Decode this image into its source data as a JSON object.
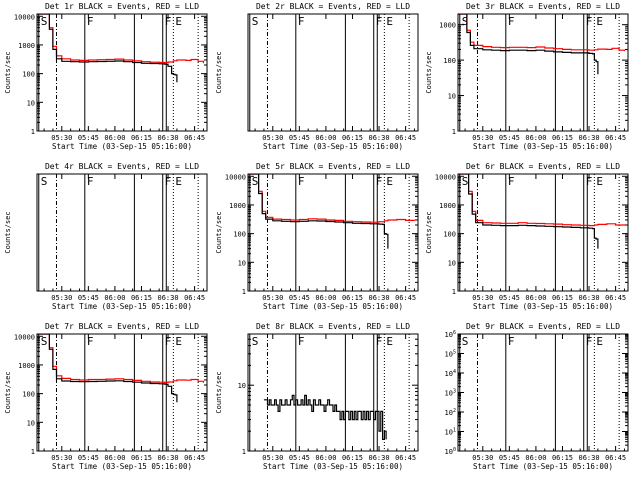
{
  "chart_data": {
    "type": "line",
    "xlabel": "Start Time (03-Sep-15 05:16:00)",
    "ylabel": "Counts/sec",
    "x_tick_labels": [
      "05:30",
      "05:45",
      "06:00",
      "06:15",
      "06:30",
      "06:45"
    ],
    "x_tick_values": [
      30,
      45,
      60,
      75,
      90,
      105
    ],
    "xlim": [
      16,
      112
    ],
    "log_y": true,
    "colors": {
      "events": "#000000",
      "lld": "#ff0000"
    },
    "markers": [
      {
        "label": "S",
        "x": 17,
        "style": "solid"
      },
      {
        "label": "",
        "x": 27,
        "style": "dashdot"
      },
      {
        "label": "F",
        "x": 43,
        "style": "solid"
      },
      {
        "label": "",
        "x": 71,
        "style": "solid"
      },
      {
        "label": "F",
        "x": 87,
        "style": "solid"
      },
      {
        "label": "",
        "x": 89,
        "style": "solid"
      },
      {
        "label": "E",
        "x": 93,
        "style": "dotted"
      },
      {
        "label": "",
        "x": 107,
        "style": "dotted"
      }
    ],
    "panels": [
      {
        "title": "Det 1r BLACK = Events, RED = LLD",
        "ylabel": "Counts/sec",
        "y_ticks": [
          1,
          10,
          100,
          1000,
          10000
        ],
        "y_tick_labels": [
          "1",
          "10",
          "100",
          "1000",
          "10000"
        ],
        "ylim": [
          1,
          12000
        ],
        "xlabel": "Start Time (03-Sep-15 05:16:00)",
        "x_tick_labels": [
          "05:30",
          "05:45",
          "06:00",
          "06:15",
          "06:30",
          "06:45"
        ],
        "series": [
          {
            "color": "#ff0000",
            "x": [
              16,
              20,
              23,
              25,
              27,
              30,
              35,
              40,
              45,
              50,
              55,
              60,
              65,
              70,
              75,
              80,
              85,
              88,
              90,
              93,
              95,
              100,
              103,
              107,
              110
            ],
            "y": [
              12000,
              12000,
              4000,
              900,
              420,
              330,
              300,
              290,
              300,
              305,
              310,
              320,
              300,
              280,
              260,
              250,
              245,
              240,
              255,
              280,
              300,
              290,
              310,
              270,
              230
            ]
          },
          {
            "color": "#000000",
            "x": [
              16,
              20,
              23,
              25,
              27,
              30,
              35,
              40,
              45,
              50,
              55,
              60,
              65,
              70,
              75,
              80,
              85,
              88,
              89,
              90,
              92,
              93,
              94,
              95
            ],
            "y": [
              12000,
              12000,
              3500,
              700,
              330,
              270,
              260,
              255,
              260,
              265,
              270,
              275,
              260,
              245,
              230,
              225,
              220,
              215,
              210,
              180,
              100,
              95,
              90,
              50
            ]
          }
        ]
      },
      {
        "title": "Det 2r BLACK = Events, RED = LLD",
        "ylabel": "Counts/sec",
        "y_ticks": [],
        "y_tick_labels": [],
        "ylim": [
          1,
          10
        ],
        "xlabel": "Start Time (03-Sep-15 05:16:00)",
        "x_tick_labels": [
          "05:30",
          "05:45",
          "06:00",
          "06:15",
          "06:30",
          "06:45"
        ],
        "series": []
      },
      {
        "title": "Det 3r BLACK = Events, RED = LLD",
        "ylabel": "Counts/sec",
        "y_ticks": [
          1,
          10,
          100,
          1000
        ],
        "y_tick_labels": [
          "1",
          "10",
          "100",
          "1000"
        ],
        "ylim": [
          1,
          2000
        ],
        "xlabel": "Start Time (03-Sep-15 05:16:00)",
        "x_tick_labels": [
          "05:30",
          "05:45",
          "06:00",
          "06:15",
          "06:30",
          "06:45"
        ],
        "series": [
          {
            "color": "#ff0000",
            "x": [
              16,
              19,
              21,
              23,
              25,
              30,
              35,
              40,
              45,
              50,
              55,
              60,
              65,
              70,
              75,
              80,
              85,
              90,
              93,
              95,
              100,
              103,
              107,
              110
            ],
            "y": [
              2000,
              2000,
              700,
              320,
              260,
              240,
              230,
              225,
              230,
              230,
              225,
              235,
              220,
              210,
              200,
              195,
              195,
              190,
              195,
              205,
              200,
              215,
              190,
              180
            ]
          },
          {
            "color": "#000000",
            "x": [
              16,
              19,
              21,
              23,
              25,
              30,
              35,
              40,
              45,
              50,
              55,
              60,
              65,
              70,
              75,
              80,
              85,
              90,
              92,
              93,
              94,
              95
            ],
            "y": [
              2000,
              2000,
              600,
              260,
              210,
              195,
              190,
              185,
              190,
              190,
              185,
              190,
              180,
              170,
              165,
              160,
              160,
              155,
              150,
              100,
              90,
              40
            ]
          }
        ]
      },
      {
        "title": "Det 4r BLACK = Events, RED = LLD",
        "ylabel": "Counts/sec",
        "y_ticks": [],
        "y_tick_labels": [],
        "ylim": [
          1,
          10
        ],
        "xlabel": "Start Time (03-Sep-15 05:16:00)",
        "x_tick_labels": [
          "05:30",
          "05:45",
          "06:00",
          "06:15",
          "06:30",
          "06:45"
        ],
        "series": []
      },
      {
        "title": "Det 5r BLACK = Events, RED = LLD",
        "ylabel": "Counts/sec",
        "y_ticks": [
          1,
          10,
          100,
          1000,
          10000
        ],
        "y_tick_labels": [
          "1",
          "10",
          "100",
          "1000",
          "10000"
        ],
        "ylim": [
          1,
          12000
        ],
        "xlabel": "Start Time (03-Sep-15 05:16:00)",
        "x_tick_labels": [
          "05:30",
          "05:45",
          "06:00",
          "06:15",
          "06:30",
          "06:45"
        ],
        "series": [
          {
            "color": "#ff0000",
            "x": [
              16,
              20,
              22,
              24,
              26,
              30,
              35,
              40,
              45,
              50,
              55,
              60,
              65,
              70,
              75,
              80,
              85,
              90,
              93,
              95,
              100,
              105,
              110
            ],
            "y": [
              12000,
              12000,
              3000,
              600,
              370,
              320,
              310,
              300,
              310,
              330,
              320,
              300,
              290,
              270,
              260,
              255,
              250,
              260,
              280,
              300,
              310,
              290,
              280
            ]
          },
          {
            "color": "#000000",
            "x": [
              16,
              20,
              22,
              24,
              26,
              30,
              35,
              40,
              45,
              50,
              55,
              60,
              65,
              70,
              75,
              80,
              85,
              88,
              90,
              92,
              93,
              94,
              95
            ],
            "y": [
              12000,
              12000,
              2500,
              500,
              320,
              280,
              270,
              260,
              270,
              280,
              275,
              265,
              255,
              240,
              230,
              225,
              220,
              220,
              215,
              210,
              100,
              95,
              30
            ]
          }
        ]
      },
      {
        "title": "Det 6r BLACK = Events, RED = LLD",
        "ylabel": "Counts/sec",
        "y_ticks": [
          1,
          10,
          100,
          1000,
          10000
        ],
        "y_tick_labels": [
          "1",
          "10",
          "100",
          "1000",
          "10000"
        ],
        "ylim": [
          1,
          12000
        ],
        "xlabel": "Start Time (03-Sep-15 05:16:00)",
        "x_tick_labels": [
          "05:30",
          "05:45",
          "06:00",
          "06:15",
          "06:30",
          "06:45"
        ],
        "series": [
          {
            "color": "#ff0000",
            "x": [
              16,
              20,
              22,
              24,
              26,
              30,
              35,
              40,
              45,
              50,
              55,
              60,
              65,
              70,
              75,
              80,
              85,
              90,
              93,
              95,
              100,
              105,
              110
            ],
            "y": [
              12000,
              12000,
              3000,
              600,
              290,
              240,
              235,
              230,
              230,
              240,
              230,
              225,
              220,
              215,
              205,
              200,
              195,
              190,
              200,
              210,
              220,
              200,
              190
            ]
          },
          {
            "color": "#000000",
            "x": [
              16,
              20,
              22,
              24,
              26,
              30,
              35,
              40,
              45,
              50,
              55,
              60,
              65,
              70,
              75,
              80,
              85,
              88,
              90,
              92,
              93,
              94,
              95
            ],
            "y": [
              12000,
              12000,
              2400,
              480,
              240,
              200,
              195,
              190,
              190,
              195,
              190,
              185,
              180,
              175,
              170,
              165,
              160,
              160,
              155,
              150,
              70,
              65,
              30
            ]
          }
        ]
      },
      {
        "title": "Det 7r BLACK = Events, RED = LLD",
        "ylabel": "Counts/sec",
        "y_ticks": [
          1,
          10,
          100,
          1000,
          10000
        ],
        "y_tick_labels": [
          "1",
          "10",
          "100",
          "1000",
          "10000"
        ],
        "ylim": [
          1,
          12000
        ],
        "xlabel": "Start Time (03-Sep-15 05:16:00)",
        "x_tick_labels": [
          "05:30",
          "05:45",
          "06:00",
          "06:15",
          "06:30",
          "06:45"
        ],
        "series": [
          {
            "color": "#ff0000",
            "x": [
              16,
              20,
              23,
              25,
              27,
              30,
              35,
              40,
              45,
              50,
              55,
              60,
              65,
              70,
              75,
              80,
              85,
              88,
              90,
              93,
              95,
              100,
              103,
              107,
              110
            ],
            "y": [
              12000,
              12000,
              4000,
              900,
              420,
              340,
              310,
              300,
              310,
              310,
              320,
              330,
              310,
              290,
              270,
              255,
              250,
              245,
              255,
              280,
              300,
              295,
              310,
              270,
              240
            ]
          },
          {
            "color": "#000000",
            "x": [
              16,
              20,
              23,
              25,
              27,
              30,
              35,
              40,
              45,
              50,
              55,
              60,
              65,
              70,
              75,
              80,
              85,
              88,
              89,
              90,
              92,
              93,
              94,
              95
            ],
            "y": [
              12000,
              12000,
              3500,
              700,
              330,
              275,
              265,
              260,
              265,
              270,
              275,
              280,
              265,
              250,
              235,
              225,
              220,
              215,
              210,
              180,
              100,
              95,
              90,
              50
            ]
          }
        ]
      },
      {
        "title": "Det 8r BLACK = Events, RED = LLD",
        "ylabel": "Counts/sec",
        "y_ticks": [
          1,
          10
        ],
        "y_tick_labels": [
          "1",
          "10"
        ],
        "ylim": [
          1,
          60
        ],
        "xlabel": "Start Time (03-Sep-15 05:16:00)",
        "x_tick_labels": [
          "05:30",
          "05:45",
          "06:00",
          "06:15",
          "06:30",
          "06:45"
        ],
        "series": [
          {
            "color": "#000000",
            "x": [
              25,
              27,
              28,
              29,
              30,
              31,
              32,
              33,
              34,
              35,
              36,
              37,
              38,
              39,
              40,
              41,
              42,
              43,
              44,
              45,
              46,
              47,
              48,
              49,
              50,
              51,
              52,
              53,
              54,
              55,
              56,
              57,
              58,
              59,
              60,
              61,
              62,
              63,
              64,
              65,
              66,
              67,
              68,
              69,
              70,
              71,
              72,
              73,
              74,
              75,
              76,
              77,
              78,
              79,
              80,
              81,
              82,
              83,
              84,
              85,
              86,
              87,
              88,
              89,
              90,
              91,
              92,
              93,
              94
            ],
            "y": [
              6,
              5,
              6,
              5,
              5,
              6,
              5,
              4,
              6,
              5,
              5,
              6,
              5,
              5,
              6,
              7,
              5,
              6,
              5,
              5,
              6,
              5,
              7,
              5,
              6,
              5,
              4,
              6,
              5,
              5,
              6,
              5,
              5,
              4,
              5,
              6,
              5,
              5,
              4,
              5,
              4,
              4,
              3,
              4,
              3,
              4,
              4,
              3,
              4,
              3,
              4,
              3,
              4,
              4,
              3,
              4,
              3,
              4,
              3,
              4,
              4,
              3,
              4,
              4,
              2,
              4,
              1.5,
              2,
              1.5
            ]
          }
        ]
      },
      {
        "title": "Det 9r BLACK = Events, RED = LLD",
        "ylabel": "",
        "y_ticks": [
          1,
          10,
          100,
          1000,
          10000,
          100000,
          1000000
        ],
        "y_tick_labels": [
          "10^0",
          "10^1",
          "10^2",
          "10^3",
          "10^4",
          "10^5",
          "10^6"
        ],
        "ylim": [
          1,
          1000000
        ],
        "xlabel": "Start Time (03-Sep-15 05:16:00)",
        "x_tick_labels": [
          "05:30",
          "05:45",
          "06:00",
          "06:15",
          "06:30",
          "06:45"
        ],
        "series": []
      }
    ]
  }
}
